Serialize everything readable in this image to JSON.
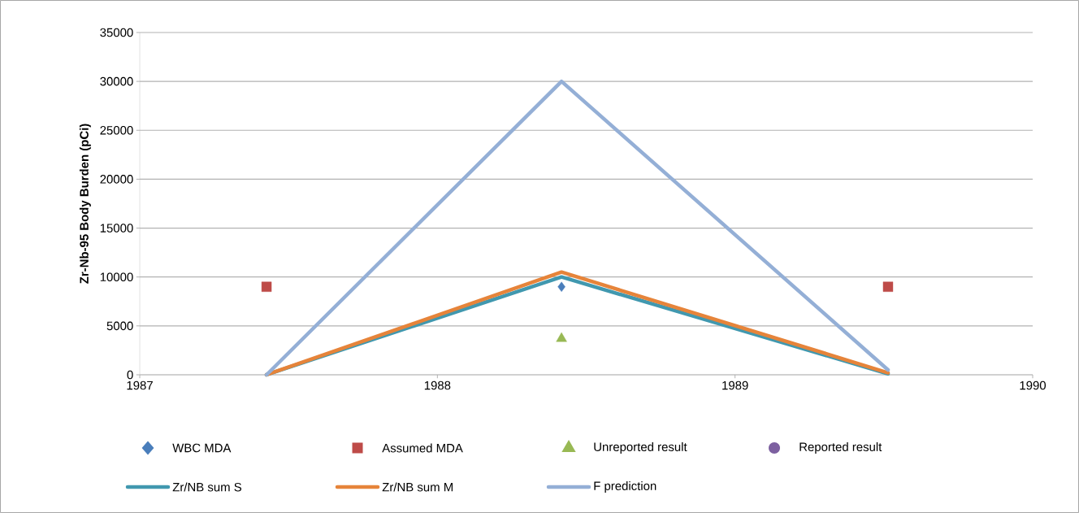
{
  "chart_data": {
    "type": "line",
    "ylabel": "Zr-Nb-95 Body Burden (pCi)",
    "xlim": [
      1987,
      1990
    ],
    "xticks": [
      1987,
      1988,
      1989,
      1990
    ],
    "ylim": [
      0,
      35000
    ],
    "yticks": [
      0,
      5000,
      10000,
      15000,
      20000,
      25000,
      30000,
      35000
    ],
    "grid": "y",
    "legend": "bottom",
    "series": [
      {
        "name": "WBC MDA",
        "type": "scatter",
        "marker": "diamond",
        "color": "#4a7ebb",
        "x": [
          1988.417
        ],
        "values": [
          9000
        ]
      },
      {
        "name": "Assumed MDA",
        "type": "scatter",
        "marker": "square",
        "color": "#be4b48",
        "x": [
          1987.426,
          1989.514
        ],
        "values": [
          9000,
          9000
        ]
      },
      {
        "name": "Unreported result",
        "type": "scatter",
        "marker": "triangle",
        "color": "#98b954",
        "x": [
          1988.417
        ],
        "values": [
          3700
        ]
      },
      {
        "name": "Reported result",
        "type": "scatter",
        "marker": "circle",
        "color": "#7d60a0"
      },
      {
        "name": "Zr/NB sum S",
        "marker": "none",
        "color": "#4198af",
        "x": [
          1987.426,
          1988.417,
          1989.514
        ],
        "values": [
          0,
          10000,
          100
        ]
      },
      {
        "name": "Zr/NB sum M",
        "marker": "none",
        "color": "#e6843a",
        "x": [
          1987.426,
          1988.417,
          1989.514
        ],
        "values": [
          0,
          10500,
          200
        ]
      },
      {
        "name": "F prediction",
        "marker": "none",
        "color": "#94afd6",
        "x": [
          1987.426,
          1988.417,
          1989.514
        ],
        "values": [
          0,
          30000,
          500
        ]
      }
    ]
  }
}
